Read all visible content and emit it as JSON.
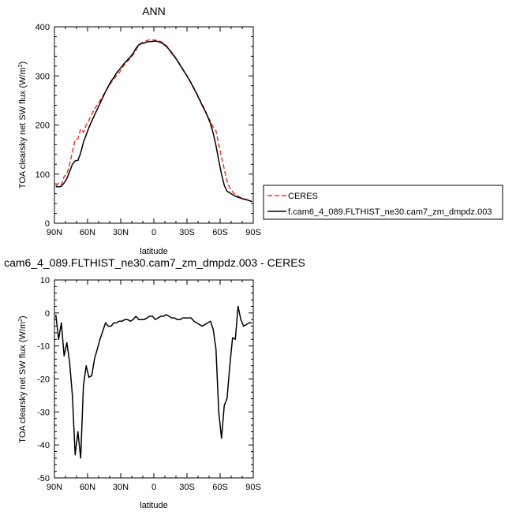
{
  "chart_data": [
    {
      "type": "line",
      "title": "ANN",
      "xlabel": "latitude",
      "ylabel": "TOA clearsky net SW flux (W/m",
      "ylabel_sup": "2",
      "ylabel_end": ")",
      "x_ticks": [
        "90N",
        "60N",
        "30N",
        "0",
        "30S",
        "60S",
        "90S"
      ],
      "xlim": [
        90,
        -90
      ],
      "ylim": [
        0,
        400
      ],
      "y_ticks": [
        "0",
        "100",
        "200",
        "300",
        "400"
      ],
      "y_tick_values": [
        0,
        100,
        200,
        300,
        400
      ],
      "legend_position": "right",
      "x": [
        88.75,
        86.25,
        83.75,
        81.25,
        78.75,
        76.25,
        73.75,
        71.25,
        68.75,
        66.25,
        63.75,
        61.25,
        58.75,
        56.25,
        53.75,
        51.25,
        48.75,
        46.25,
        43.75,
        41.25,
        38.75,
        36.25,
        33.75,
        31.25,
        28.75,
        26.25,
        23.75,
        21.25,
        18.75,
        16.25,
        13.75,
        11.25,
        8.75,
        6.25,
        3.75,
        1.25,
        -1.25,
        -3.75,
        -6.25,
        -8.75,
        -11.25,
        -13.75,
        -16.25,
        -18.75,
        -21.25,
        -23.75,
        -26.25,
        -28.75,
        -31.25,
        -33.75,
        -36.25,
        -38.75,
        -41.25,
        -43.75,
        -46.25,
        -48.75,
        -51.25,
        -53.75,
        -56.25,
        -58.75,
        -61.25,
        -63.75,
        -66.25,
        -68.75,
        -71.25,
        -73.75,
        -76.25,
        -78.75,
        -81.25,
        -83.75,
        -86.25,
        -88.75
      ],
      "series": [
        {
          "name": "CERES",
          "color": "#e8382d",
          "dash": true,
          "values": [
            75.0,
            82.0,
            78.0,
            95.0,
            100.0,
            120.0,
            145.0,
            170.0,
            172.0,
            192.0,
            185.0,
            200.0,
            210.0,
            222.0,
            232.0,
            241.0,
            250.0,
            259.0,
            268.0,
            277.0,
            286.0,
            294.0,
            301.0,
            307.0,
            316.0,
            324.0,
            330.0,
            336.0,
            343.0,
            352.0,
            362.0,
            367.0,
            370.0,
            372.0,
            374.0,
            373.0,
            373.0,
            372.0,
            370.0,
            367.0,
            362.0,
            355.0,
            348.0,
            340.0,
            332.0,
            323.0,
            314.0,
            305.0,
            296.0,
            286.0,
            276.0,
            265.0,
            253.0,
            242.0,
            231.0,
            218.0,
            207.0,
            195.0,
            188.0,
            160.0,
            135.0,
            110.0,
            85.0,
            72.0,
            64.0,
            58.0,
            55.0,
            52.0,
            50.0,
            48.0,
            46.0,
            45.0
          ]
        },
        {
          "name": "f.cam6_4_089.FLTHIST_ne30.cam7_zm_dmpdz.003",
          "color": "#000000",
          "dash": false,
          "values": [
            74.5,
            74.0,
            75.0,
            82.0,
            91.0,
            105.0,
            120.0,
            127.0,
            128.0,
            143.0,
            165.0,
            180.0,
            195.0,
            208.0,
            220.0,
            232.0,
            244.0,
            256.0,
            268.0,
            279.0,
            289.0,
            297.0,
            306.0,
            313.0,
            320.0,
            327.0,
            333.0,
            339.0,
            346.0,
            356.0,
            363.0,
            366.0,
            367.0,
            369.0,
            370.0,
            370.0,
            371.0,
            370.0,
            368.0,
            365.0,
            360.0,
            354.0,
            346.0,
            339.0,
            331.0,
            322.0,
            313.0,
            304.0,
            295.0,
            285.0,
            274.0,
            264.0,
            252.0,
            240.0,
            229.0,
            217.0,
            203.0,
            183.0,
            158.0,
            128.0,
            100.0,
            77.0,
            65.0,
            62.0,
            58.0,
            55.0,
            53.0,
            51.0,
            49.0,
            48.0,
            46.0,
            44.0
          ]
        }
      ]
    },
    {
      "type": "line",
      "title": "cam6_4_089.FLTHIST_ne30.cam7_zm_dmpdz.003 - CERES",
      "xlabel": "latitude",
      "ylabel": "TOA clearsky net SW flux (W/m",
      "ylabel_sup": "2",
      "ylabel_end": ")",
      "x_ticks": [
        "90N",
        "60N",
        "30N",
        "0",
        "30S",
        "60S",
        "90S"
      ],
      "xlim": [
        90,
        -90
      ],
      "ylim": [
        -50,
        10
      ],
      "y_ticks": [
        "-50",
        "-40",
        "-30",
        "-20",
        "-10",
        "0",
        "10"
      ],
      "y_tick_values": [
        -50,
        -40,
        -30,
        -20,
        -10,
        0,
        10
      ],
      "x": [
        88.75,
        86.25,
        83.75,
        81.25,
        78.75,
        76.25,
        73.75,
        71.25,
        68.75,
        66.25,
        63.75,
        61.25,
        58.75,
        56.25,
        53.75,
        51.25,
        48.75,
        46.25,
        43.75,
        41.25,
        38.75,
        36.25,
        33.75,
        31.25,
        28.75,
        26.25,
        23.75,
        21.25,
        18.75,
        16.25,
        13.75,
        11.25,
        8.75,
        6.25,
        3.75,
        1.25,
        -1.25,
        -3.75,
        -6.25,
        -8.75,
        -11.25,
        -13.75,
        -16.25,
        -18.75,
        -21.25,
        -23.75,
        -26.25,
        -28.75,
        -31.25,
        -33.75,
        -36.25,
        -38.75,
        -41.25,
        -43.75,
        -46.25,
        -48.75,
        -51.25,
        -53.75,
        -56.25,
        -58.75,
        -61.25,
        -63.75,
        -66.25,
        -68.75,
        -71.25,
        -73.75,
        -76.25,
        -78.75,
        -81.25,
        -83.75,
        -86.25,
        -88.75
      ],
      "series": [
        {
          "color": "#000000",
          "values": [
            -0.5,
            -8.0,
            -3.0,
            -13.0,
            -9.0,
            -15.0,
            -25.0,
            -43.0,
            -36.0,
            -44.0,
            -22.0,
            -16.0,
            -19.5,
            -19.0,
            -14.0,
            -11.0,
            -8.0,
            -5.5,
            -3.0,
            -4.0,
            -4.0,
            -3.0,
            -3.0,
            -2.5,
            -2.5,
            -2.0,
            -2.0,
            -2.5,
            -2.0,
            -1.0,
            -2.0,
            -2.0,
            -2.0,
            -1.5,
            -1.0,
            -1.0,
            -2.0,
            -1.5,
            -1.0,
            -1.0,
            -0.5,
            -1.0,
            -1.5,
            -1.5,
            -2.0,
            -2.0,
            -1.5,
            -1.5,
            -1.5,
            -1.5,
            -2.5,
            -3.0,
            -3.5,
            -4.0,
            -3.5,
            -3.0,
            -2.5,
            -5.0,
            -11.0,
            -30.0,
            -38.0,
            -28.0,
            -26.0,
            -16.0,
            -7.5,
            -8.0,
            2.0,
            -2.0,
            -4.0,
            -3.5,
            -3.0,
            -3.0
          ]
        }
      ]
    }
  ]
}
